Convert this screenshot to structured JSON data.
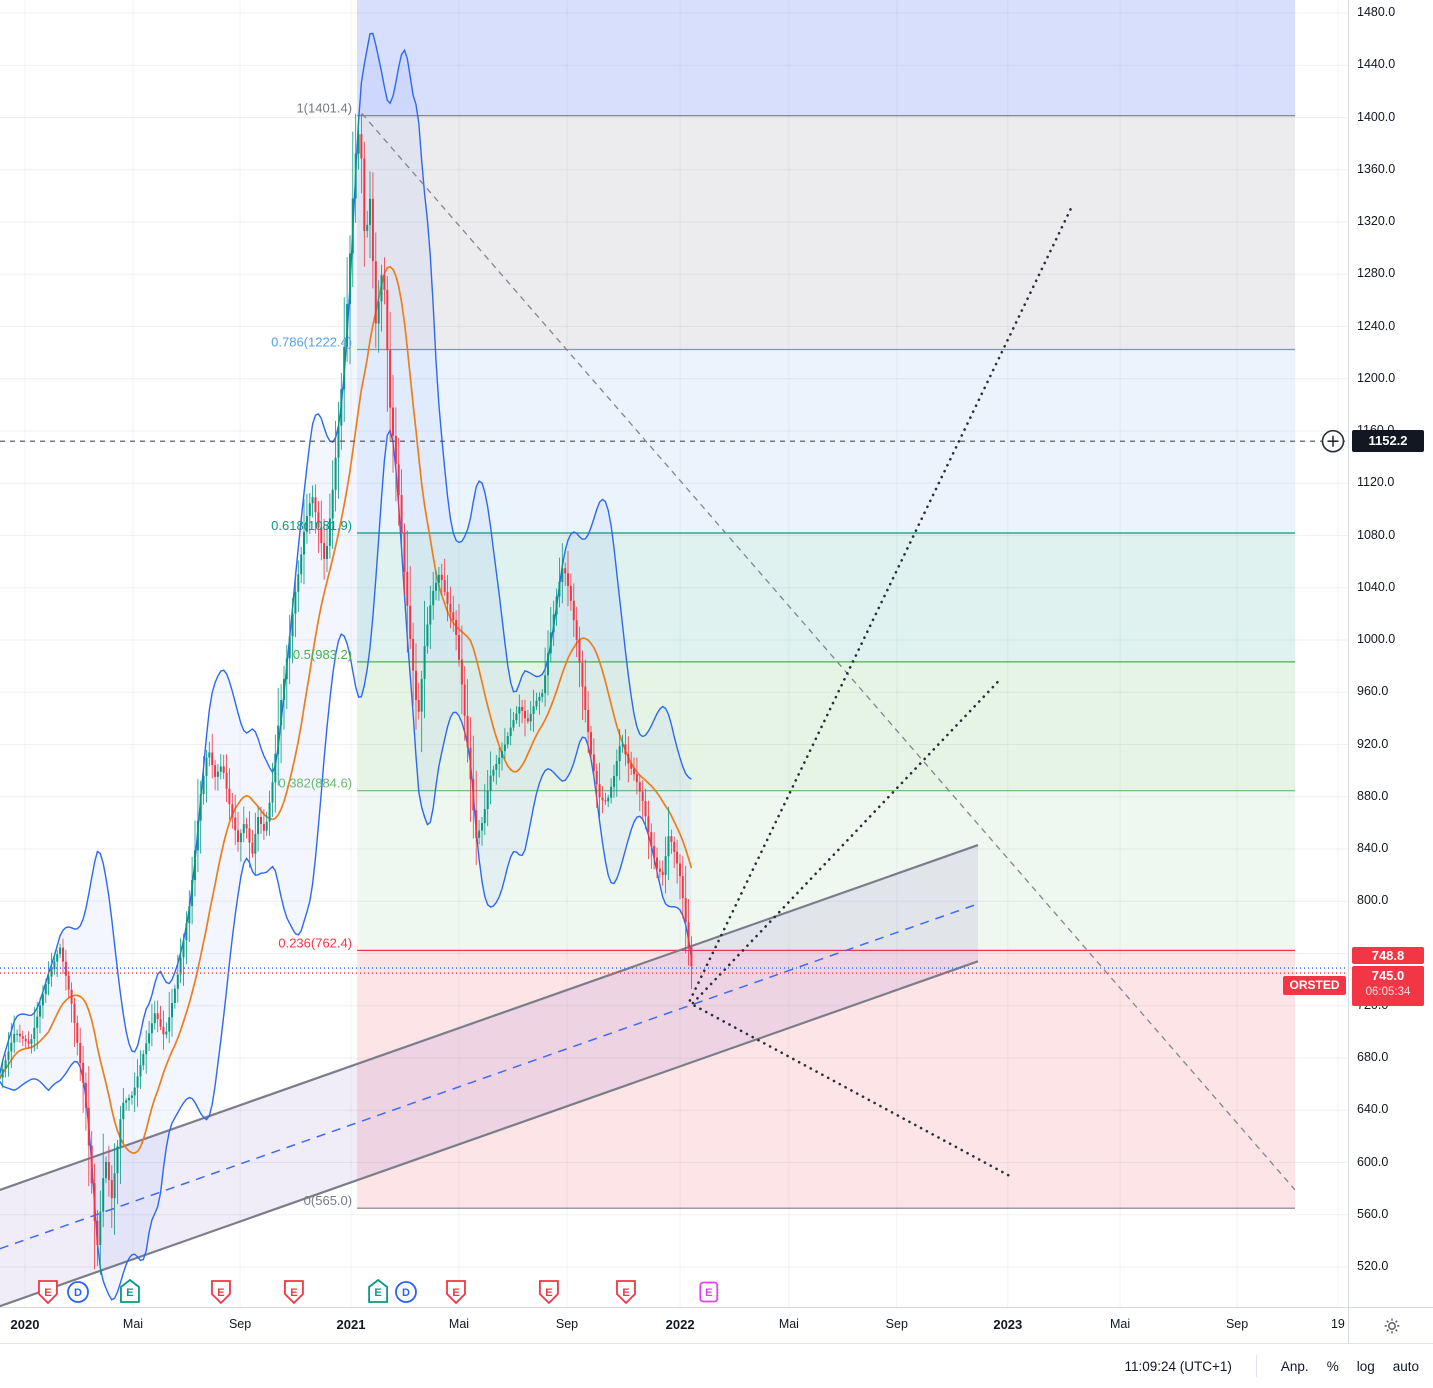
{
  "ui": {
    "crosshair_price_label": "1152.2",
    "prev_close_label": "748.8",
    "last_price_label": "745.0",
    "countdown": "06:05:34",
    "symbol_tag": "ORSTED",
    "clock": "11:09:24 (UTC+1)",
    "adjust_label": "Anp.",
    "percent_label": "%",
    "log_label": "log",
    "auto_label": "auto"
  },
  "chart_data": {
    "type": "candlestick",
    "symbol": "ORSTED",
    "last_price": 745.0,
    "previous_close": 748.8,
    "session_countdown": "06:05:34",
    "crosshair_price": 1152.2,
    "y_axis": {
      "min": 520,
      "max": 1480,
      "tick_step": 40,
      "ticks": [
        1480,
        1440,
        1400,
        1360,
        1320,
        1280,
        1240,
        1200,
        1160,
        1120,
        1080,
        1040,
        1000,
        960,
        920,
        880,
        840,
        800,
        760,
        720,
        680,
        640,
        600,
        560,
        520
      ]
    },
    "x_axis": {
      "unit": "months_since_2020-01",
      "labels": [
        {
          "text": "2020",
          "m": 0,
          "bold": true
        },
        {
          "text": "Mai",
          "m": 3.95,
          "bold": false
        },
        {
          "text": "Sep",
          "m": 7.87,
          "bold": false
        },
        {
          "text": "2021",
          "m": 11.93,
          "bold": true
        },
        {
          "text": "Mai",
          "m": 15.88,
          "bold": false
        },
        {
          "text": "Sep",
          "m": 19.83,
          "bold": false
        },
        {
          "text": "2022",
          "m": 23.97,
          "bold": true
        },
        {
          "text": "Mai",
          "m": 27.95,
          "bold": false
        },
        {
          "text": "Sep",
          "m": 31.9,
          "bold": false
        },
        {
          "text": "2023",
          "m": 35.96,
          "bold": true
        },
        {
          "text": "Mai",
          "m": 40.07,
          "bold": false
        },
        {
          "text": "Sep",
          "m": 44.35,
          "bold": false
        },
        {
          "text": "19",
          "m": 48.04,
          "bold": false
        }
      ]
    },
    "close_path": [
      [
        -0.92,
        665
      ],
      [
        -0.37,
        700
      ],
      [
        0.18,
        690
      ],
      [
        0.73,
        735
      ],
      [
        1.28,
        765
      ],
      [
        1.72,
        720
      ],
      [
        2.2,
        650
      ],
      [
        2.63,
        532
      ],
      [
        2.93,
        605
      ],
      [
        3.18,
        572
      ],
      [
        3.55,
        645
      ],
      [
        3.95,
        652
      ],
      [
        4.39,
        688
      ],
      [
        4.76,
        715
      ],
      [
        5.12,
        695
      ],
      [
        5.6,
        745
      ],
      [
        6.04,
        800
      ],
      [
        6.4,
        878
      ],
      [
        6.7,
        918
      ],
      [
        6.95,
        895
      ],
      [
        7.21,
        905
      ],
      [
        7.5,
        872
      ],
      [
        7.79,
        845
      ],
      [
        8.05,
        862
      ],
      [
        8.31,
        835
      ],
      [
        8.52,
        865
      ],
      [
        8.78,
        852
      ],
      [
        9.04,
        888
      ],
      [
        9.33,
        948
      ],
      [
        9.62,
        992
      ],
      [
        9.88,
        1035
      ],
      [
        10.06,
        1058
      ],
      [
        10.24,
        1088
      ],
      [
        10.5,
        1112
      ],
      [
        10.72,
        1088
      ],
      [
        10.98,
        1058
      ],
      [
        11.23,
        1108
      ],
      [
        11.53,
        1178
      ],
      [
        11.82,
        1268
      ],
      [
        12.07,
        1368
      ],
      [
        12.26,
        1395
      ],
      [
        12.44,
        1300
      ],
      [
        12.62,
        1340
      ],
      [
        12.84,
        1240
      ],
      [
        13.1,
        1290
      ],
      [
        13.35,
        1180
      ],
      [
        13.65,
        1118
      ],
      [
        13.9,
        1048
      ],
      [
        14.16,
        985
      ],
      [
        14.38,
        938
      ],
      [
        14.64,
        1000
      ],
      [
        14.89,
        1035
      ],
      [
        15.18,
        1052
      ],
      [
        15.48,
        1026
      ],
      [
        15.73,
        1012
      ],
      [
        15.99,
        965
      ],
      [
        16.28,
        898
      ],
      [
        16.5,
        848
      ],
      [
        16.76,
        862
      ],
      [
        17.01,
        895
      ],
      [
        17.31,
        908
      ],
      [
        17.56,
        920
      ],
      [
        17.82,
        936
      ],
      [
        18.11,
        950
      ],
      [
        18.37,
        936
      ],
      [
        18.66,
        952
      ],
      [
        18.95,
        960
      ],
      [
        19.21,
        1002
      ],
      [
        19.47,
        1036
      ],
      [
        19.69,
        1058
      ],
      [
        19.94,
        1035
      ],
      [
        20.2,
        998
      ],
      [
        20.49,
        948
      ],
      [
        20.75,
        906
      ],
      [
        21.04,
        878
      ],
      [
        21.3,
        876
      ],
      [
        21.55,
        896
      ],
      [
        21.81,
        924
      ],
      [
        22.06,
        906
      ],
      [
        22.32,
        896
      ],
      [
        22.61,
        876
      ],
      [
        22.87,
        846
      ],
      [
        23.12,
        825
      ],
      [
        23.34,
        820
      ],
      [
        23.56,
        852
      ],
      [
        23.78,
        836
      ],
      [
        23.96,
        820
      ],
      [
        24.11,
        796
      ],
      [
        24.26,
        768
      ],
      [
        24.42,
        745
      ]
    ],
    "candle_colors": {
      "up": "#089981",
      "down": "#f23645"
    },
    "indicators": {
      "bollinger": {
        "window": 18,
        "mult": 2.05,
        "line_color": "#2d68f0",
        "fill": "rgba(41,98,255,0.055)"
      },
      "ma": {
        "color": "#ef7d1a"
      }
    },
    "fibonacci": {
      "x_start_m": 12.15,
      "x_end_m": 46.47,
      "levels": [
        {
          "r": "1",
          "value": 1401.4,
          "label": "1(1401.4)",
          "color": "#787b86"
        },
        {
          "r": "0.786",
          "value": 1222.4,
          "label": "0.786(1222.4)",
          "color": "#58a0ea"
        },
        {
          "r": "0.618",
          "value": 1081.9,
          "label": "0.618(1081.9)",
          "color": "#089981"
        },
        {
          "r": "0.5",
          "value": 983.2,
          "label": "0.5(983.2)",
          "color": "#4caf50"
        },
        {
          "r": "0.382",
          "value": 884.6,
          "label": "0.382(884.6)",
          "color": "#66bb6a"
        },
        {
          "r": "0.236",
          "value": 762.4,
          "label": "0.236(762.4)",
          "color": "#f23645"
        },
        {
          "r": "0",
          "value": 565.0,
          "label": "0(565.0)",
          "color": "#787b86"
        }
      ],
      "zones": [
        {
          "from": "top",
          "to": 1401.4,
          "fill": "rgba(92,120,245,0.24)"
        },
        {
          "from": 1401.4,
          "to": 1222.4,
          "fill": "rgba(120,123,134,0.14)"
        },
        {
          "from": 1222.4,
          "to": 1081.9,
          "fill": "rgba(88,166,242,0.12)"
        },
        {
          "from": 1081.9,
          "to": 983.2,
          "fill": "rgba(8,153,129,0.13)"
        },
        {
          "from": 983.2,
          "to": 884.6,
          "fill": "rgba(76,175,80,0.14)"
        },
        {
          "from": 884.6,
          "to": 762.4,
          "fill": "rgba(102,187,106,0.10)"
        },
        {
          "from": 762.4,
          "to": 565.0,
          "fill": "rgba(242,54,69,0.13)"
        }
      ]
    },
    "channel": {
      "fill": "rgba(115,86,189,0.11)",
      "upper": [
        [
          -0.92,
          579
        ],
        [
          34.87,
          843
        ]
      ],
      "median": [
        [
          -0.92,
          534
        ],
        [
          34.87,
          798
        ]
      ],
      "lower": [
        [
          -0.92,
          490
        ],
        [
          34.87,
          754
        ]
      ]
    },
    "trendlines_dotted": [
      {
        "from": [
          24.33,
          724
        ],
        "to": [
          38.31,
          1332
        ]
      },
      {
        "from": [
          24.44,
          722
        ],
        "to": [
          35.6,
          968
        ]
      },
      {
        "from": [
          24.5,
          720
        ],
        "to": [
          36.18,
          588
        ]
      }
    ],
    "dashed_diagonal": {
      "from": [
        12.33,
        1403
      ],
      "to": [
        46.47,
        579
      ]
    },
    "price_lines": [
      {
        "price": 748.8,
        "color": "#2962ff"
      },
      {
        "price": 745.0,
        "color": "#f23645"
      }
    ],
    "events": [
      {
        "m": 0.84,
        "letter": "E",
        "kind": "earnings",
        "style": "red-shield"
      },
      {
        "m": 1.94,
        "letter": "D",
        "kind": "dividend",
        "style": "blue-circle"
      },
      {
        "m": 3.84,
        "letter": "E",
        "kind": "earnings",
        "style": "green-house"
      },
      {
        "m": 7.17,
        "letter": "E",
        "kind": "earnings",
        "style": "red-shield"
      },
      {
        "m": 9.84,
        "letter": "E",
        "kind": "earnings",
        "style": "red-shield"
      },
      {
        "m": 12.92,
        "letter": "E",
        "kind": "earnings",
        "style": "green-house"
      },
      {
        "m": 13.94,
        "letter": "D",
        "kind": "dividend",
        "style": "blue-circle"
      },
      {
        "m": 15.77,
        "letter": "E",
        "kind": "earnings",
        "style": "red-shield"
      },
      {
        "m": 19.17,
        "letter": "E",
        "kind": "earnings",
        "style": "red-shield"
      },
      {
        "m": 21.99,
        "letter": "E",
        "kind": "earnings",
        "style": "red-shield"
      },
      {
        "m": 25.02,
        "letter": "E",
        "kind": "earnings-upcoming",
        "style": "purple-square"
      }
    ]
  }
}
